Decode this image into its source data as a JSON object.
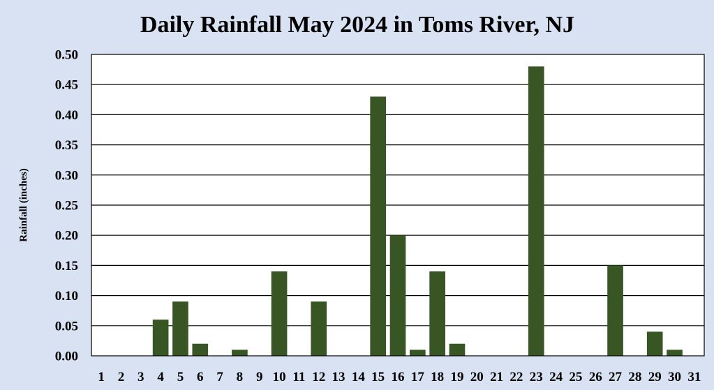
{
  "chart_data": {
    "type": "bar",
    "title": "Daily Rainfall May 2024 in Toms River, NJ",
    "xlabel": "",
    "ylabel": "Rainfall (inches)",
    "ylim": [
      0,
      0.5
    ],
    "ytick_step": 0.05,
    "grid": true,
    "legend": "none",
    "categories": [
      "1",
      "2",
      "3",
      "4",
      "5",
      "6",
      "7",
      "8",
      "9",
      "10",
      "11",
      "12",
      "13",
      "14",
      "15",
      "16",
      "17",
      "18",
      "19",
      "20",
      "21",
      "22",
      "23",
      "24",
      "25",
      "26",
      "27",
      "28",
      "29",
      "30",
      "31"
    ],
    "values": [
      0,
      0,
      0,
      0.06,
      0.09,
      0.02,
      0,
      0.01,
      0,
      0.14,
      0,
      0.09,
      0,
      0,
      0.43,
      0.2,
      0.01,
      0.14,
      0.02,
      0,
      0,
      0,
      0.48,
      0,
      0,
      0,
      0.15,
      0,
      0.04,
      0.01,
      0
    ],
    "bar_color": "#375623",
    "background_color": "#d9e2f3",
    "plot_background": "#ffffff"
  }
}
